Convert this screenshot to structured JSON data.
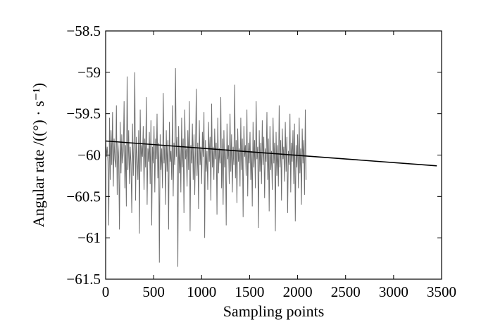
{
  "chart_data": {
    "type": "line",
    "title": "",
    "xlabel": "Sampling points",
    "ylabel": "Angular rate /((°) · s⁻¹)",
    "xlim": [
      0,
      3500
    ],
    "ylim": [
      -61.5,
      -58.5
    ],
    "x_ticks": [
      0,
      500,
      1000,
      1500,
      2000,
      2500,
      3000,
      3500
    ],
    "x_tick_labels": [
      "0",
      "500",
      "1000",
      "1500",
      "2000",
      "2500",
      "3000",
      "3500"
    ],
    "y_ticks": [
      -58.5,
      -59,
      -59.5,
      -60,
      -60.5,
      -61,
      -61.5
    ],
    "y_tick_labels": [
      "−58.5",
      "−59",
      "−59.5",
      "−60",
      "−60.5",
      "−61",
      "−61.5"
    ],
    "grid": false,
    "series": [
      {
        "color": "#707070",
        "x_step": 8,
        "x_start": 0,
        "values": [
          -59.82,
          -60.02,
          -59.9,
          -60.08,
          -60.85,
          -59.55,
          -60.3,
          -59.7,
          -60.12,
          -59.48,
          -60.38,
          -59.8,
          -60.05,
          -60.15,
          -59.4,
          -60.48,
          -59.85,
          -60.02,
          -60.9,
          -59.6,
          -60.22,
          -59.75,
          -60.1,
          -59.95,
          -59.35,
          -60.4,
          -59.88,
          -60.62,
          -59.05,
          -60.18,
          -59.7,
          -60.35,
          -59.9,
          -60.12,
          -60.7,
          -59.62,
          -60.25,
          -59.85,
          -59.0,
          -60.55,
          -59.78,
          -60.05,
          -60.3,
          -59.7,
          -60.95,
          -59.45,
          -60.2,
          -59.88,
          -60.02,
          -59.65,
          -60.42,
          -59.8,
          -60.15,
          -59.3,
          -60.6,
          -59.92,
          -60.08,
          -59.72,
          -60.35,
          -59.58,
          -60.85,
          -59.9,
          -60.1,
          -59.65,
          -60.45,
          -59.8,
          -60.05,
          -59.5,
          -60.28,
          -59.85,
          -61.3,
          -59.75,
          -60.18,
          -59.92,
          -60.4,
          -59.25,
          -60.1,
          -59.88,
          -60.6,
          -59.7,
          -60.2,
          -59.82,
          -60.9,
          -59.6,
          -60.08,
          -59.95,
          -60.3,
          -59.4,
          -60.5,
          -59.85,
          -60.12,
          -58.95,
          -60.02,
          -59.78,
          -61.35,
          -59.65,
          -60.22,
          -59.9,
          -60.45,
          -59.55,
          -60.15,
          -59.8,
          -60.7,
          -59.45,
          -60.05,
          -59.92,
          -60.38,
          -59.7,
          -60.18,
          -59.35,
          -60.92,
          -59.88,
          -60.1,
          -59.62,
          -60.3,
          -59.75,
          -60.48,
          -59.95,
          -59.2,
          -60.25,
          -59.85,
          -60.65,
          -59.58,
          -60.12,
          -59.9,
          -60.35,
          -59.72,
          -60.02,
          -59.48,
          -61.0,
          -59.82,
          -60.2,
          -59.95,
          -60.42,
          -59.6,
          -60.08,
          -59.78,
          -60.55,
          -59.38,
          -60.15,
          -59.9,
          -60.3,
          -59.68,
          -60.05,
          -59.85,
          -60.72,
          -59.55,
          -60.22,
          -59.92,
          -60.1,
          -59.3,
          -60.4,
          -59.8,
          -60.6,
          -59.7,
          -60.15,
          -59.95,
          -60.85,
          -59.62,
          -60.05,
          -59.88,
          -60.35,
          -59.5,
          -60.2,
          -59.75,
          -60.45,
          -59.9,
          -60.12,
          -59.15,
          -60.28,
          -59.82,
          -60.58,
          -59.68,
          -60.08,
          -59.92,
          -60.38,
          -59.55,
          -60.18,
          -59.8,
          -60.75,
          -59.65,
          -60.02,
          -59.88,
          -60.25,
          -59.45,
          -60.5,
          -59.85,
          -60.1,
          -59.72,
          -60.3,
          -59.95,
          -60.62,
          -59.6,
          -60.15,
          -59.82,
          -60.4,
          -59.35,
          -60.05,
          -59.9,
          -60.88,
          -59.7,
          -60.2,
          -59.85,
          -60.35,
          -59.58,
          -60.12,
          -59.78,
          -60.52,
          -59.92,
          -60.08,
          -59.48,
          -60.3,
          -59.8,
          -60.68,
          -59.65,
          -60.18,
          -59.95,
          -60.42,
          -59.55,
          -60.1,
          -59.85,
          -60.92,
          -59.72,
          -60.25,
          -59.88,
          -60.38,
          -59.4,
          -60.15,
          -59.82,
          -60.55,
          -59.68,
          -60.05,
          -59.9,
          -60.32,
          -59.6,
          -60.2,
          -59.78,
          -60.7,
          -59.95,
          -60.12,
          -59.5,
          -60.45,
          -59.85,
          -60.08,
          -59.7,
          -60.35,
          -59.62,
          -60.8,
          -59.88,
          -60.15,
          -59.75,
          -60.4,
          -59.55,
          -60.22,
          -59.92,
          -60.6,
          -59.68,
          -60.1,
          -59.82,
          -60.48,
          -59.45,
          -60.3
        ],
        "trend": {
          "x": [
            0,
            3450
          ],
          "y": [
            -59.83,
            -60.13
          ]
        }
      }
    ]
  }
}
